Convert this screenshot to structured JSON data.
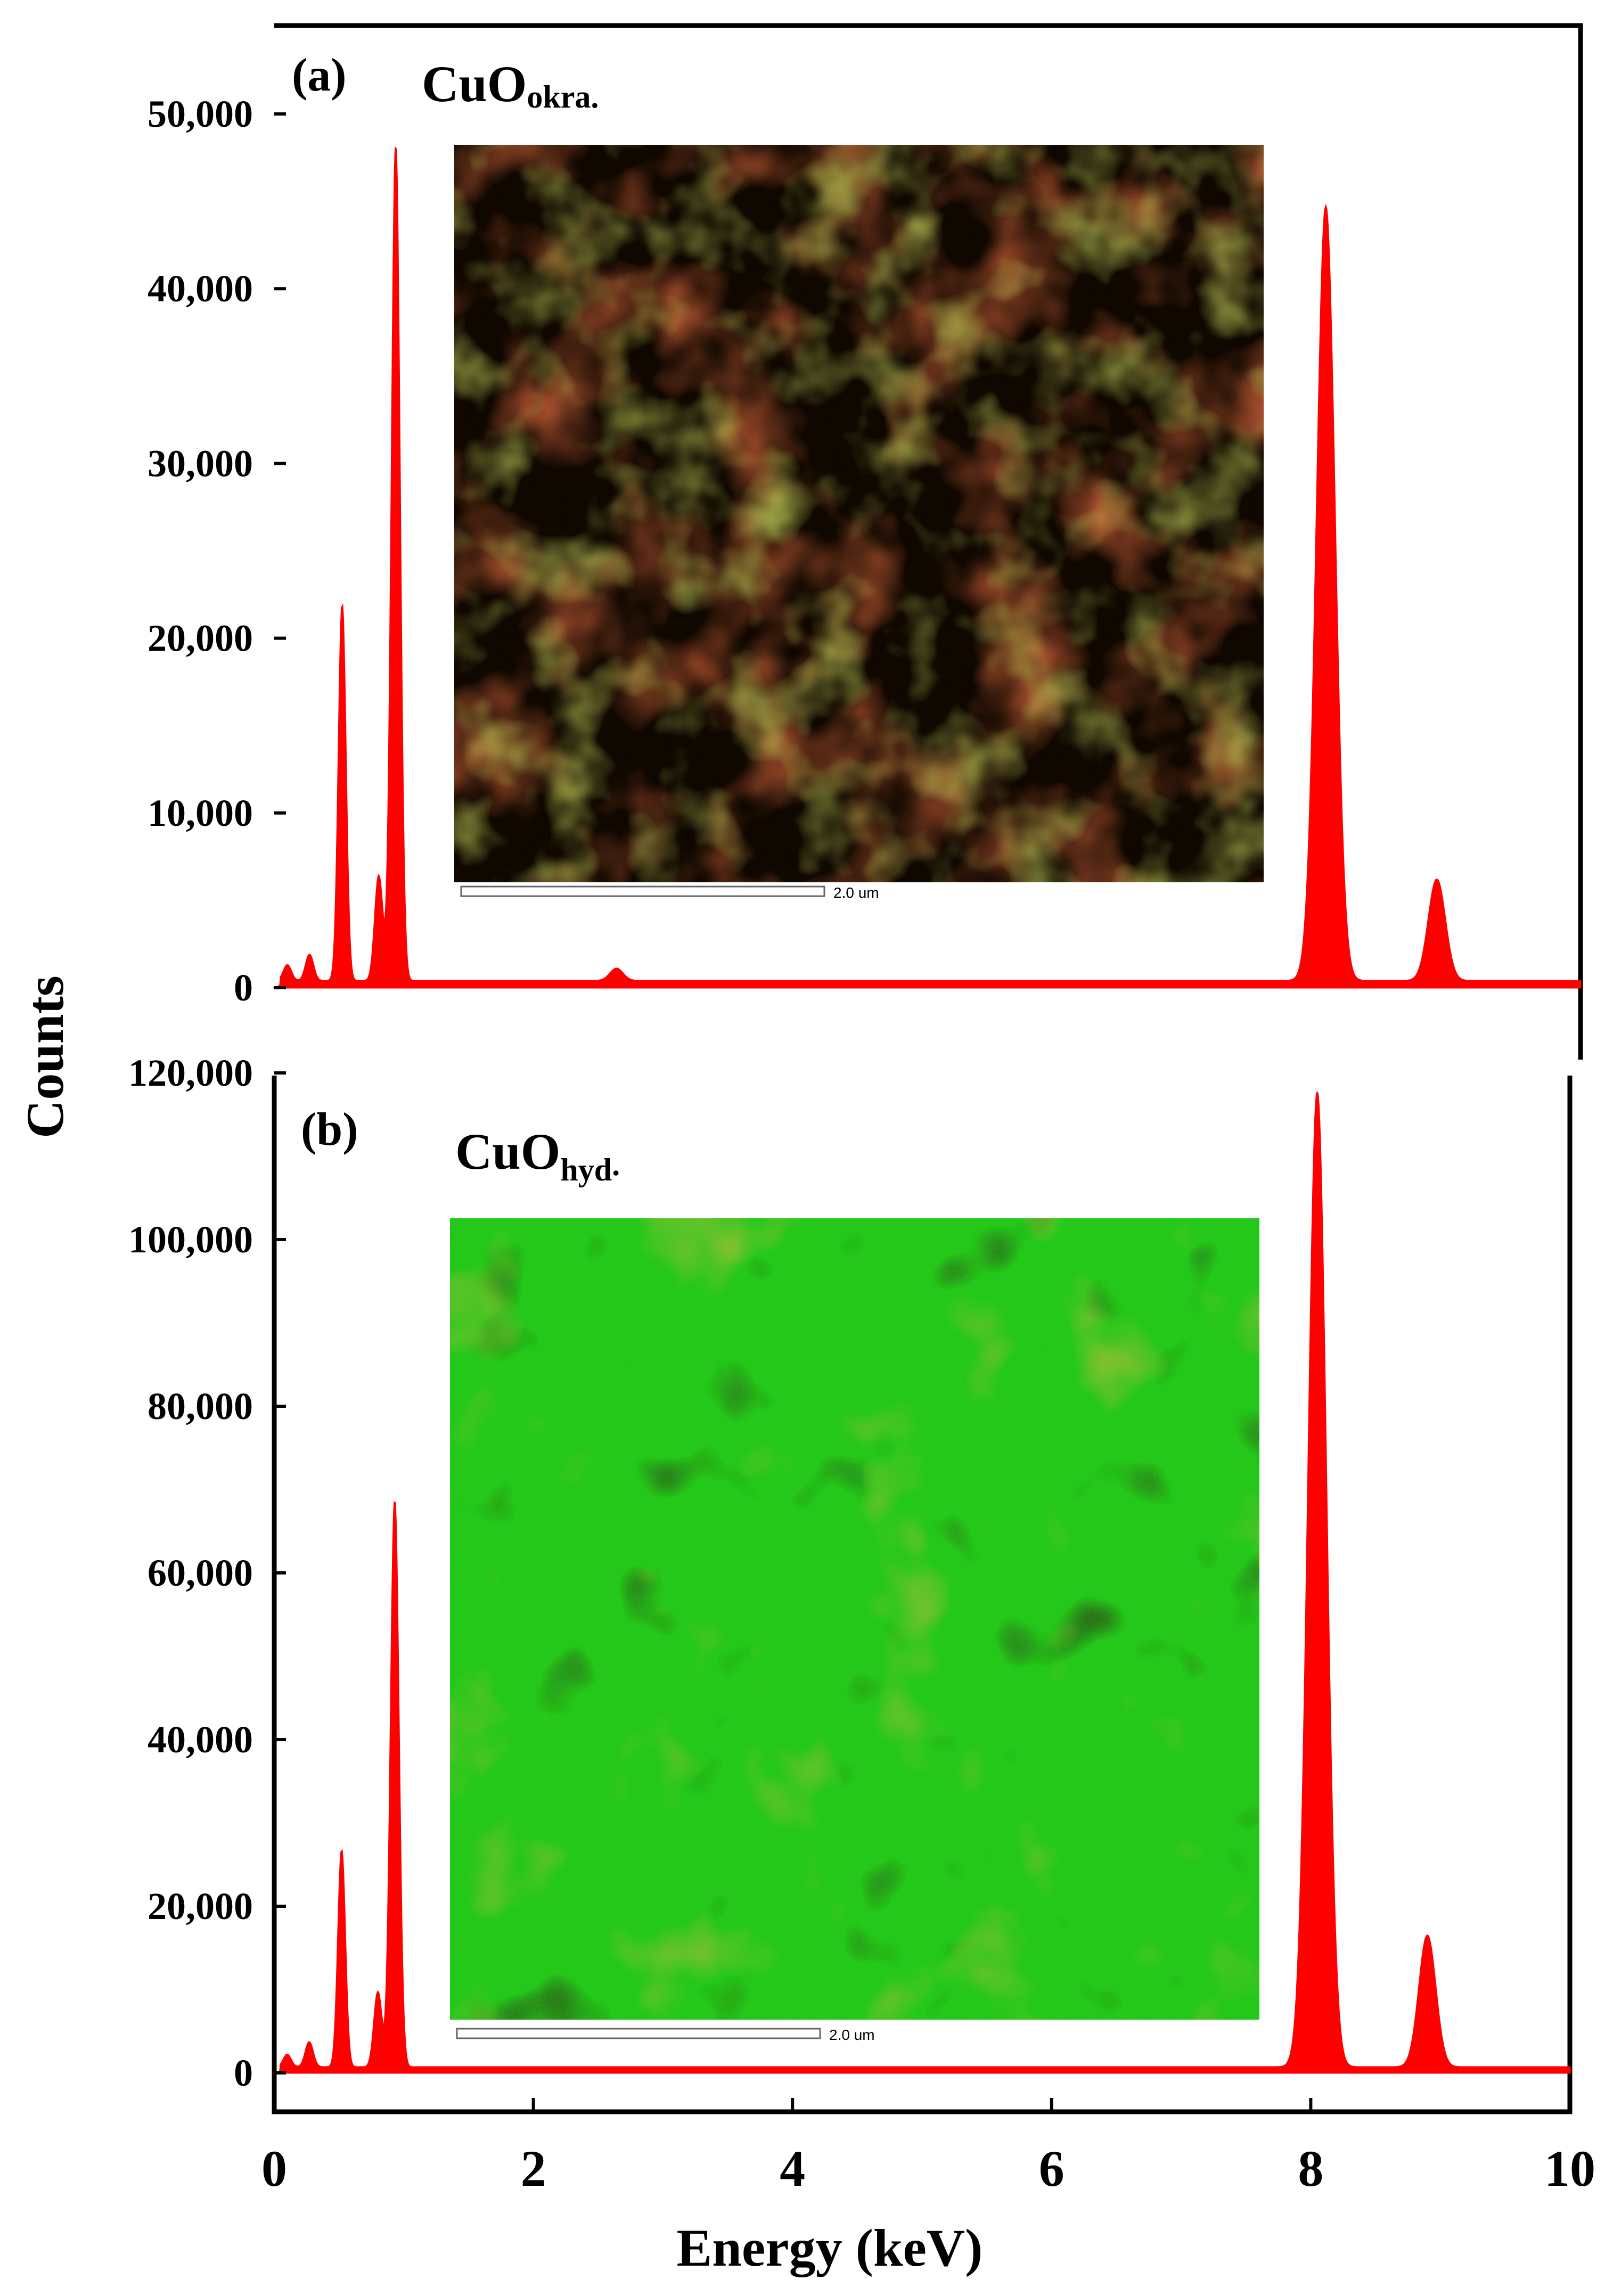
{
  "chart_data": [
    {
      "type": "area",
      "panel_label": "(a)",
      "sample_label": {
        "main": "CuO",
        "sub": "okra."
      },
      "ylabel": "Counts",
      "xlabel": "Energy (keV)",
      "ylim": [
        0,
        55000
      ],
      "yticks": [
        0,
        10000,
        20000,
        30000,
        40000,
        50000
      ],
      "ytick_labels": [
        "0",
        "10,000",
        "20,000",
        "30,000",
        "40,000",
        "50,000"
      ],
      "xlim": [
        0,
        10
      ],
      "series_color": "#ff0000",
      "baseline": 400,
      "peaks": [
        {
          "x": 0.1,
          "y": 900,
          "w": 0.03
        },
        {
          "x": 0.27,
          "y": 1500,
          "w": 0.03
        },
        {
          "x": 0.52,
          "y": 21500,
          "w": 0.028
        },
        {
          "x": 0.8,
          "y": 6000,
          "w": 0.03
        },
        {
          "x": 0.93,
          "y": 47800,
          "w": 0.032
        },
        {
          "x": 2.62,
          "y": 700,
          "w": 0.05
        },
        {
          "x": 8.05,
          "y": 44300,
          "w": 0.07
        },
        {
          "x": 8.9,
          "y": 5800,
          "w": 0.065
        }
      ],
      "inset": {
        "scale_bar_label": "2.0 um",
        "colors": [
          "#c82a10",
          "#8a9a1c",
          "#c8a020",
          "#100800"
        ]
      }
    },
    {
      "type": "area",
      "panel_label": "(b)",
      "sample_label": {
        "main": "CuO",
        "sub": "hyd",
        "suffix": "."
      },
      "ylim": [
        0,
        120000
      ],
      "yticks": [
        0,
        20000,
        40000,
        60000,
        80000,
        100000,
        120000
      ],
      "ytick_labels": [
        "0",
        "20,000",
        "40,000",
        "60,000",
        "80,000",
        "100,000",
        "120,000"
      ],
      "xlim": [
        0,
        10
      ],
      "xticks": [
        0,
        2,
        4,
        6,
        8,
        10
      ],
      "xtick_labels": [
        "0",
        "2",
        "4",
        "6",
        "8",
        "10"
      ],
      "series_color": "#ff0000",
      "baseline": 700,
      "peaks": [
        {
          "x": 0.1,
          "y": 1500,
          "w": 0.03
        },
        {
          "x": 0.27,
          "y": 3000,
          "w": 0.03
        },
        {
          "x": 0.52,
          "y": 26000,
          "w": 0.028
        },
        {
          "x": 0.8,
          "y": 9000,
          "w": 0.03
        },
        {
          "x": 0.93,
          "y": 68000,
          "w": 0.032
        },
        {
          "x": 8.05,
          "y": 117000,
          "w": 0.07
        },
        {
          "x": 8.9,
          "y": 15800,
          "w": 0.065
        }
      ],
      "inset": {
        "scale_bar_label": "2.0 um",
        "colors": [
          "#22c81a",
          "#b0b020",
          "#0a1a05"
        ]
      }
    }
  ]
}
